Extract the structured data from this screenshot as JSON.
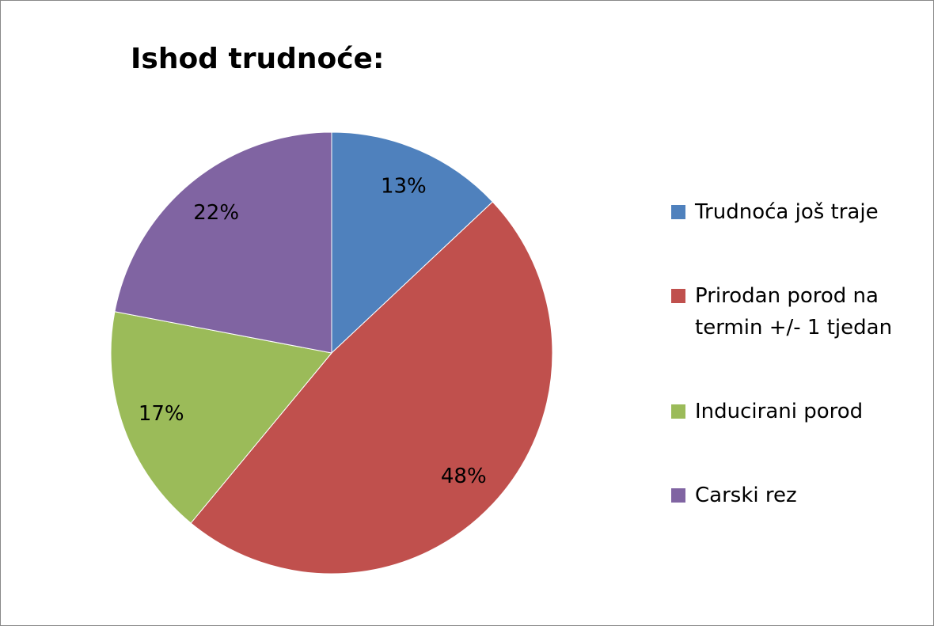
{
  "chart_data": {
    "type": "pie",
    "title": "Ishod trudnoće:",
    "categories": [
      "Trudnoća još traje",
      "Prirodan porod na termin +/- 1 tjedan",
      "Inducirani porod",
      "Carski rez"
    ],
    "values": [
      13,
      48,
      17,
      22
    ],
    "value_labels": [
      "13%",
      "48%",
      "17%",
      "22%"
    ],
    "colors": [
      "#4f81bd",
      "#c0504d",
      "#9bbb59",
      "#8064a2"
    ],
    "legend": "right"
  }
}
